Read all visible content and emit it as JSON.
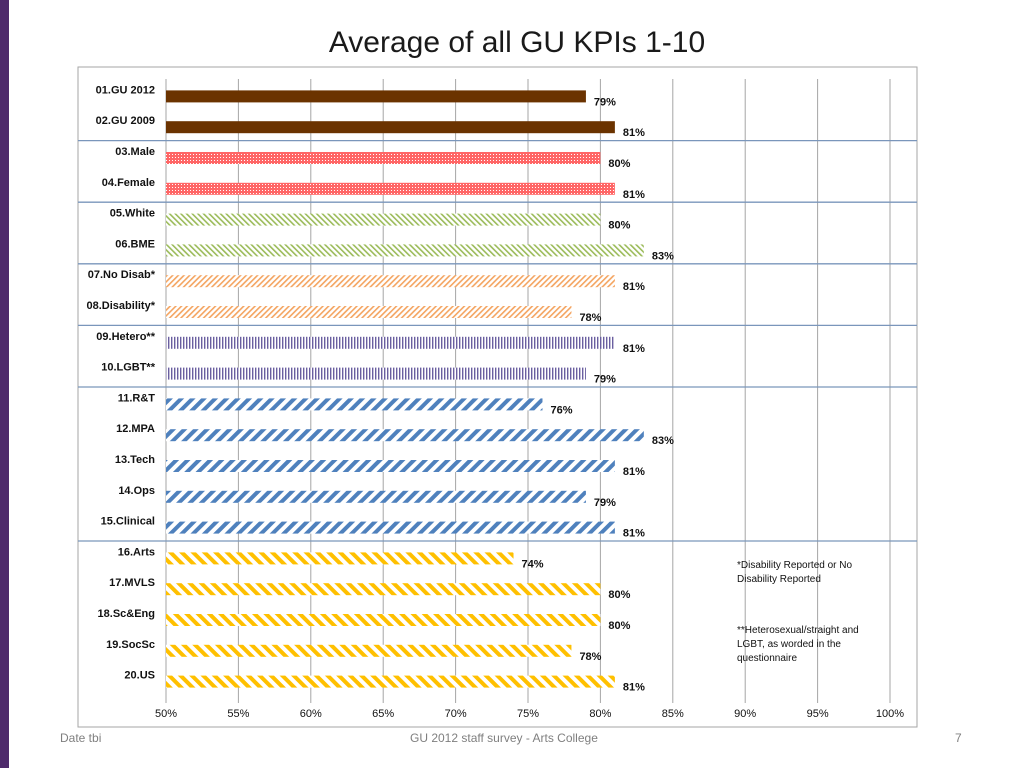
{
  "slide": {
    "title": "Average of all GU KPIs 1-10",
    "footer_left": "Date tbi",
    "footer_center": "GU 2012 staff survey -  Arts College",
    "page_number": "7"
  },
  "notes": {
    "note1": "*Disability Reported or No Disability Reported",
    "note2": "**Heterosexual/straight and LGBT, as worded in the questionnaire"
  },
  "colors": {
    "gu": "#6b3300",
    "gender": "#ff6666",
    "ethnicity": "#9bbb59",
    "disability": "#f4a460",
    "orientation": "#6a5fa0",
    "staff_group": "#4f81bd",
    "college": "#ffc000",
    "accent_bar": "#4e2a6b"
  },
  "chart_data": {
    "type": "bar",
    "orientation": "horizontal",
    "title": "Average of all GU KPIs 1-10",
    "xlim": [
      50,
      100
    ],
    "x_ticks": [
      "50%",
      "55%",
      "60%",
      "65%",
      "70%",
      "75%",
      "80%",
      "85%",
      "90%",
      "95%",
      "100%"
    ],
    "grid": true,
    "categories": [
      "01.GU 2012",
      "02.GU 2009",
      "03.Male",
      "04.Female",
      "05.White",
      "06.BME",
      "07.No Disab*",
      "08.Disability*",
      "09.Hetero**",
      "10.LGBT**",
      "11.R&T",
      "12.MPA",
      "13.Tech",
      "14.Ops",
      "15.Clinical",
      "16.Arts",
      "17.MVLS",
      "18.Sc&Eng",
      "19.SocSc",
      "20.US"
    ],
    "values": [
      79,
      81,
      80,
      81,
      80,
      83,
      81,
      78,
      81,
      79,
      76,
      83,
      81,
      79,
      81,
      74,
      80,
      80,
      78,
      81
    ],
    "value_labels": [
      "79%",
      "81%",
      "80%",
      "81%",
      "80%",
      "83%",
      "81%",
      "78%",
      "81%",
      "79%",
      "76%",
      "83%",
      "81%",
      "79%",
      "81%",
      "74%",
      "80%",
      "80%",
      "78%",
      "81%"
    ],
    "groups": [
      {
        "style": "solid",
        "color_key": "gu",
        "size": 2
      },
      {
        "style": "dots",
        "color_key": "gender",
        "size": 2
      },
      {
        "style": "thin-diagonal",
        "color_key": "ethnicity",
        "size": 2
      },
      {
        "style": "thin-diagonal-rev",
        "color_key": "disability",
        "size": 2
      },
      {
        "style": "vertical-lines",
        "color_key": "orientation",
        "size": 2
      },
      {
        "style": "wide-diagonal",
        "color_key": "staff_group",
        "size": 5
      },
      {
        "style": "wide-diagonal-rev",
        "color_key": "college",
        "size": 5
      }
    ]
  }
}
